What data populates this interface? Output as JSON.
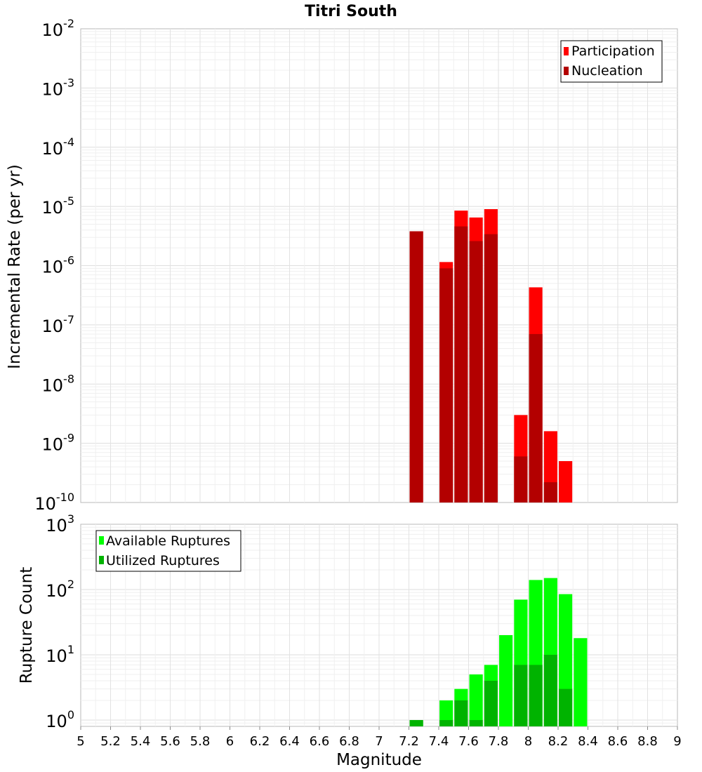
{
  "chart_data": [
    {
      "type": "bar",
      "title": "Titri South",
      "ylabel": "Incremental Rate (per yr)",
      "y_scale": "log",
      "ylim": [
        1e-10,
        0.01
      ],
      "y_tick_exponents": [
        "-2",
        "-3",
        "-4",
        "-5",
        "-6",
        "-7",
        "-8",
        "-9",
        "-10"
      ],
      "legend": {
        "placement": "top-right",
        "entries": [
          "Participation",
          "Nucleation"
        ]
      },
      "grid": true,
      "bar_width": 0.09,
      "series": [
        {
          "name": "Participation",
          "color": "#ff0000",
          "x": [
            7.25,
            7.45,
            7.55,
            7.65,
            7.75,
            7.95,
            8.05,
            8.15,
            8.25
          ],
          "values": [
            3.8e-06,
            1.15e-06,
            8.5e-06,
            6.5e-06,
            9e-06,
            3e-09,
            4.3e-07,
            1.6e-09,
            5e-10
          ]
        },
        {
          "name": "Nucleation",
          "color": "#b30000",
          "x": [
            7.25,
            7.45,
            7.55,
            7.65,
            7.75,
            7.95,
            8.05,
            8.15
          ],
          "values": [
            3.8e-06,
            9e-07,
            4.6e-06,
            2.6e-06,
            3.4e-06,
            6e-10,
            7e-08,
            2.2e-10
          ]
        }
      ]
    },
    {
      "type": "bar",
      "ylabel": "Rupture Count",
      "xlabel": "Magnitude",
      "y_scale": "log",
      "ylim": [
        0.8,
        1000
      ],
      "y_tick_exponents": [
        "3",
        "2",
        "1",
        "0"
      ],
      "xlim": [
        5,
        9
      ],
      "x_tick_labels": [
        "5",
        "5.2",
        "5.4",
        "5.6",
        "5.8",
        "6",
        "6.2",
        "6.4",
        "6.6",
        "6.8",
        "7",
        "7.2",
        "7.4",
        "7.6",
        "7.8",
        "8",
        "8.2",
        "8.4",
        "8.6",
        "8.8",
        "9"
      ],
      "legend": {
        "placement": "top-left",
        "entries": [
          "Available Ruptures",
          "Utilized Ruptures"
        ]
      },
      "grid": true,
      "bar_width": 0.09,
      "series": [
        {
          "name": "Available Ruptures",
          "color": "#00ff00",
          "x": [
            7.25,
            7.45,
            7.55,
            7.65,
            7.75,
            7.85,
            7.95,
            8.05,
            8.15,
            8.25,
            8.35
          ],
          "values": [
            1,
            2,
            3,
            5,
            7,
            20,
            70,
            140,
            150,
            85,
            18
          ]
        },
        {
          "name": "Utilized Ruptures",
          "color": "#00b300",
          "x": [
            7.25,
            7.45,
            7.55,
            7.65,
            7.75,
            7.95,
            8.05,
            8.15,
            8.25
          ],
          "values": [
            1,
            1,
            2,
            1,
            4,
            7,
            7,
            10,
            3
          ]
        }
      ]
    }
  ]
}
